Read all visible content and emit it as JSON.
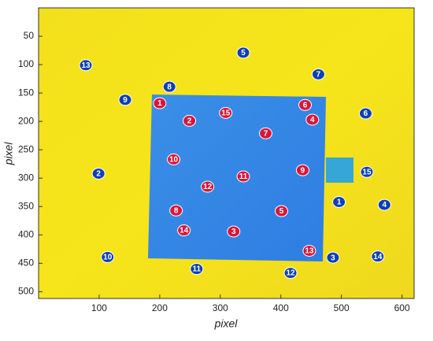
{
  "chart_data": {
    "type": "scatter",
    "x_label": "pixel",
    "y_label": "pixel",
    "xlim": [
      0,
      620
    ],
    "ylim": [
      0,
      512
    ],
    "y_inverted": true,
    "xticks": [
      100,
      200,
      300,
      400,
      500,
      600
    ],
    "yticks": [
      50,
      100,
      150,
      200,
      250,
      300,
      350,
      400,
      450,
      500
    ],
    "series": [
      {
        "color": "#0d3fb5",
        "labels": [
          1,
          2,
          3,
          4,
          5,
          6,
          7,
          8,
          9,
          10,
          11,
          12,
          13,
          14,
          15
        ],
        "x": [
          496,
          99,
          486,
          571,
          338,
          540,
          462,
          216,
          143,
          114,
          261,
          416,
          78,
          560,
          542
        ],
        "y": [
          342,
          292,
          440,
          347,
          79,
          186,
          117,
          139,
          162,
          439,
          460,
          467,
          101,
          438,
          289
        ]
      },
      {
        "color": "#d8163a",
        "labels": [
          1,
          2,
          3,
          4,
          5,
          6,
          7,
          8,
          9,
          10,
          11,
          12,
          13,
          14,
          15
        ],
        "x": [
          200,
          249,
          322,
          452,
          401,
          440,
          375,
          227,
          436,
          223,
          338,
          279,
          447,
          240,
          309
        ],
        "y": [
          168,
          199,
          394,
          197,
          358,
          171,
          221,
          357,
          286,
          267,
          297,
          315,
          428,
          392,
          185
        ]
      }
    ]
  }
}
